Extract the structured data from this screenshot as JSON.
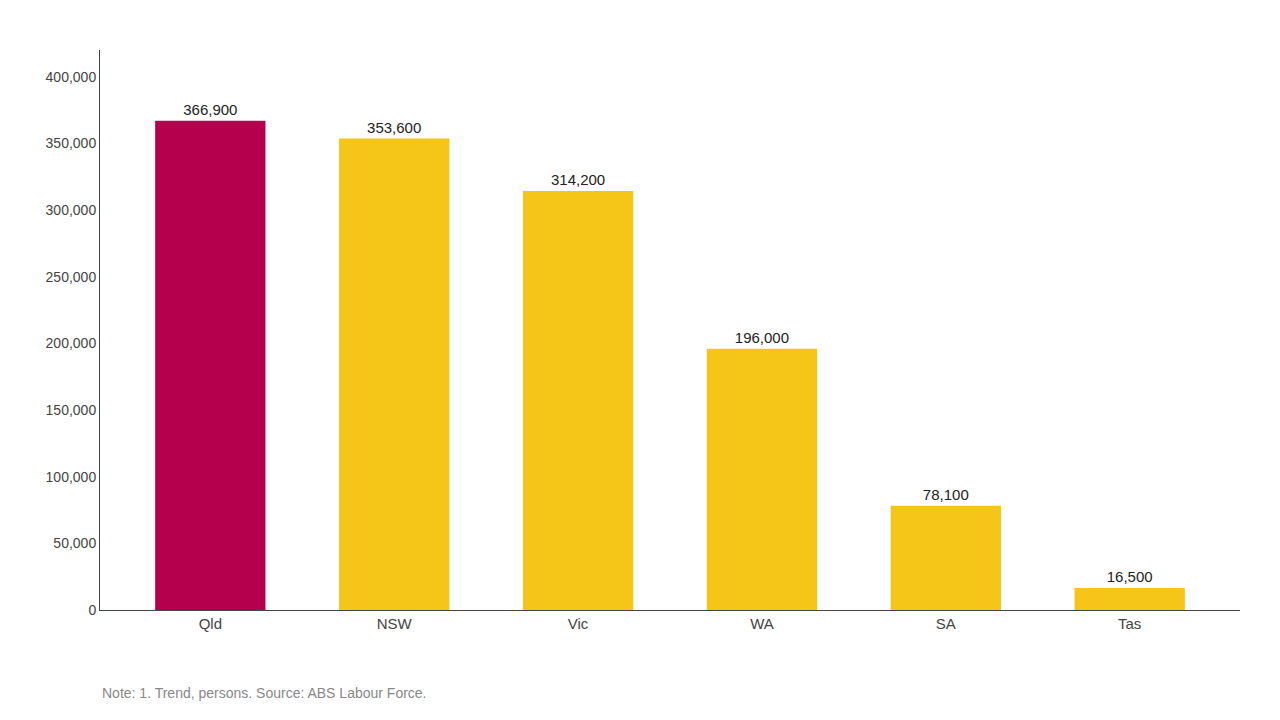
{
  "chart_data": {
    "type": "bar",
    "categories": [
      "Qld",
      "NSW",
      "Vic",
      "WA",
      "SA",
      "Tas"
    ],
    "values": [
      366900,
      353600,
      314200,
      196000,
      78100,
      16500
    ],
    "value_labels": [
      "366,900",
      "353,600",
      "314,200",
      "196,000",
      "78,100",
      "16,500"
    ],
    "data_labels": true,
    "colors": [
      "#B5004E",
      "#F5C518",
      "#F5C518",
      "#F5C518",
      "#F5C518",
      "#F5C518"
    ],
    "ylim": [
      0,
      420000
    ],
    "yticks": [
      0,
      {
        "value": 50000,
        "label": "50,000"
      },
      {
        "value": 100000,
        "label": "100,000"
      },
      {
        "value": 150000,
        "label": "150,000"
      },
      {
        "value": 200000,
        "label": "200,000"
      },
      {
        "value": 250000,
        "label": "250,000"
      },
      {
        "value": 300000,
        "label": "300,000"
      },
      {
        "value": 350000,
        "label": "350,000"
      },
      {
        "value": 400000,
        "label": "400,000"
      }
    ],
    "grid": false,
    "annotations": [
      "Note: 1. Trend, persons. Source: ABS Labour Force."
    ]
  }
}
